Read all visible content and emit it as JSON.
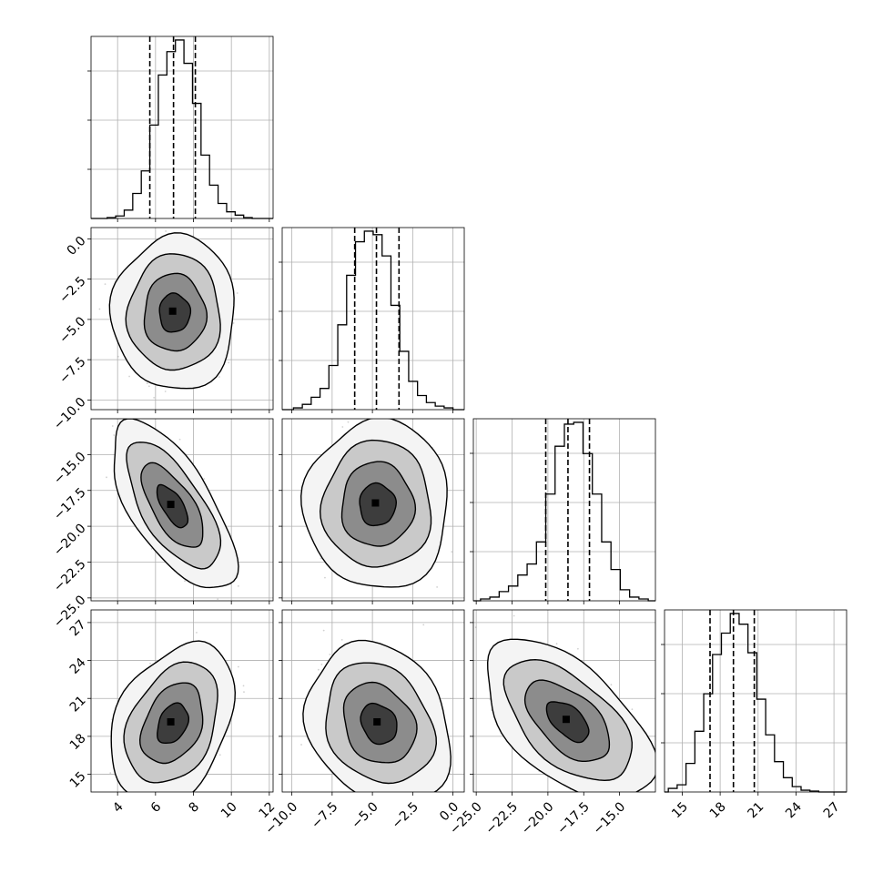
{
  "chart_data": {
    "type": "corner",
    "grid": true,
    "variables": [
      {
        "range": [
          2.6,
          12.2
        ],
        "ticks": [
          "4",
          "6",
          "8",
          "10",
          "12"
        ],
        "quantiles": [
          5.7,
          6.95,
          8.1
        ],
        "hist_bins": [
          3.45,
          3.9,
          4.35,
          4.8,
          5.25,
          5.7,
          6.15,
          6.6,
          7.05,
          7.5,
          7.95,
          8.4,
          8.85,
          9.3,
          9.75,
          10.2,
          10.65,
          11.1
        ],
        "hist_heights": [
          0.5,
          1.5,
          5.0,
          15.0,
          28.5,
          56.0,
          86.0,
          100.0,
          107.0,
          93.0,
          69.0,
          38.0,
          20.0,
          9.0,
          4.0,
          2.0,
          0.5
        ]
      },
      {
        "range": [
          -10.6,
          0.7
        ],
        "ticks": [
          "−10.0",
          "−7.5",
          "−5.0",
          "−2.5",
          "0.0"
        ],
        "quantiles": [
          -6.1,
          -4.75,
          -3.35
        ],
        "hist_bins": [
          -9.9,
          -9.35,
          -8.8,
          -8.25,
          -7.7,
          -7.15,
          -6.6,
          -6.05,
          -5.5,
          -4.95,
          -4.4,
          -3.85,
          -3.3,
          -2.75,
          -2.2,
          -1.65,
          -1.1,
          -0.55,
          0.0
        ],
        "hist_heights": [
          1.0,
          3.0,
          7.0,
          12.0,
          25.0,
          48.0,
          76.0,
          95.0,
          101.0,
          99.0,
          87.0,
          59.0,
          33.0,
          16.0,
          8.0,
          4.0,
          2.0,
          1.0
        ]
      },
      {
        "range": [
          -25.2,
          -12.5
        ],
        "ticks": [
          "−25.0",
          "−22.5",
          "−20.0",
          "−17.5",
          "−15.0"
        ],
        "quantiles": [
          -20.15,
          -18.6,
          -17.1
        ],
        "hist_bins": [
          -24.7,
          -24.05,
          -23.4,
          -22.75,
          -22.1,
          -21.45,
          -20.8,
          -20.15,
          -19.5,
          -18.85,
          -18.2,
          -17.55,
          -16.9,
          -16.25,
          -15.6,
          -14.95,
          -14.3,
          -13.65,
          -13.0
        ],
        "hist_heights": [
          1.0,
          2.0,
          5.0,
          8.0,
          14.0,
          20.0,
          32.0,
          58.0,
          84.0,
          96.0,
          97.0,
          80.0,
          58.0,
          32.0,
          17.0,
          6.0,
          2.0,
          1.0
        ]
      },
      {
        "range": [
          13.6,
          28.0
        ],
        "ticks": [
          "15",
          "18",
          "21",
          "24",
          "27"
        ],
        "quantiles": [
          17.2,
          19.05,
          20.7
        ],
        "hist_bins": [
          13.9,
          14.6,
          15.3,
          16.0,
          16.7,
          17.4,
          18.1,
          18.8,
          19.5,
          20.2,
          20.9,
          21.6,
          22.3,
          23.0,
          23.7,
          24.4,
          25.1,
          25.8
        ],
        "hist_heights": [
          2.0,
          4.0,
          16.0,
          34.0,
          55.0,
          77.0,
          89.0,
          100.0,
          94.0,
          78.0,
          52.0,
          32.0,
          17.0,
          8.0,
          3.0,
          1.0,
          0.5
        ]
      }
    ],
    "pairs": [
      {
        "row": 1,
        "col": 0,
        "center": [
          7.0,
          -4.6
        ],
        "sigma": [
          1.05,
          1.55
        ],
        "rho": 0.0
      },
      {
        "row": 2,
        "col": 0,
        "center": [
          6.9,
          -18.6
        ],
        "sigma": [
          1.05,
          1.9
        ],
        "rho": -0.66
      },
      {
        "row": 2,
        "col": 1,
        "center": [
          -4.7,
          -18.5
        ],
        "sigma": [
          1.45,
          1.9
        ],
        "rho": 0.0
      },
      {
        "row": 3,
        "col": 0,
        "center": [
          6.9,
          19.0
        ],
        "sigma": [
          1.05,
          2.05
        ],
        "rho": 0.32
      },
      {
        "row": 3,
        "col": 1,
        "center": [
          -4.6,
          19.0
        ],
        "sigma": [
          1.45,
          2.05
        ],
        "rho": -0.2
      },
      {
        "row": 3,
        "col": 2,
        "center": [
          -18.6,
          19.2
        ],
        "sigma": [
          1.9,
          2.05
        ],
        "rho": -0.55
      }
    ],
    "contour_levels_sigma": [
      0.5,
      1.0,
      1.5,
      2.0
    ],
    "colors": {
      "line": "#000000",
      "grid": "#b0b0b0",
      "points": "#9a9a9a"
    }
  }
}
